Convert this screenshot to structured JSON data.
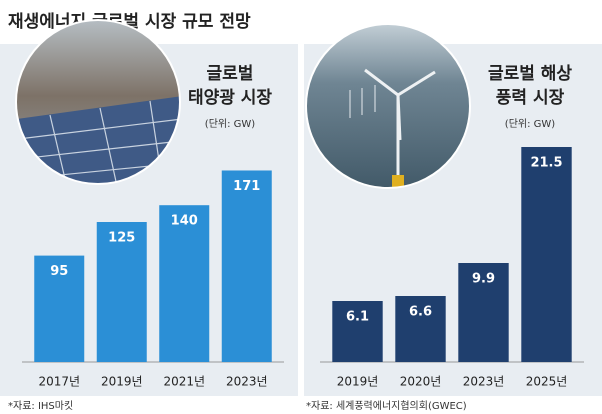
{
  "title": "재생에너지 글로벌 시장 규모 전망",
  "chart_data": [
    {
      "type": "bar",
      "title": [
        "글로벌",
        "태양광 시장"
      ],
      "unit": "(단위: GW)",
      "categories": [
        "2017년",
        "2019년",
        "2021년",
        "2023년"
      ],
      "values": [
        95,
        125,
        140,
        171
      ],
      "color": "#2b8fd6",
      "ylim": [
        0,
        200
      ],
      "source": "*자료: IHS마킷"
    },
    {
      "type": "bar",
      "title": [
        "글로벌 해상",
        "풍력 시장"
      ],
      "unit": "(단위: GW)",
      "categories": [
        "2019년",
        "2020년",
        "2023년",
        "2025년"
      ],
      "values": [
        6.1,
        6.6,
        9.9,
        21.5
      ],
      "color": "#1f3f6e",
      "ylim": [
        0,
        22.4
      ],
      "source": "*자료: 세계풍력에너지협의회(GWEC)"
    }
  ]
}
